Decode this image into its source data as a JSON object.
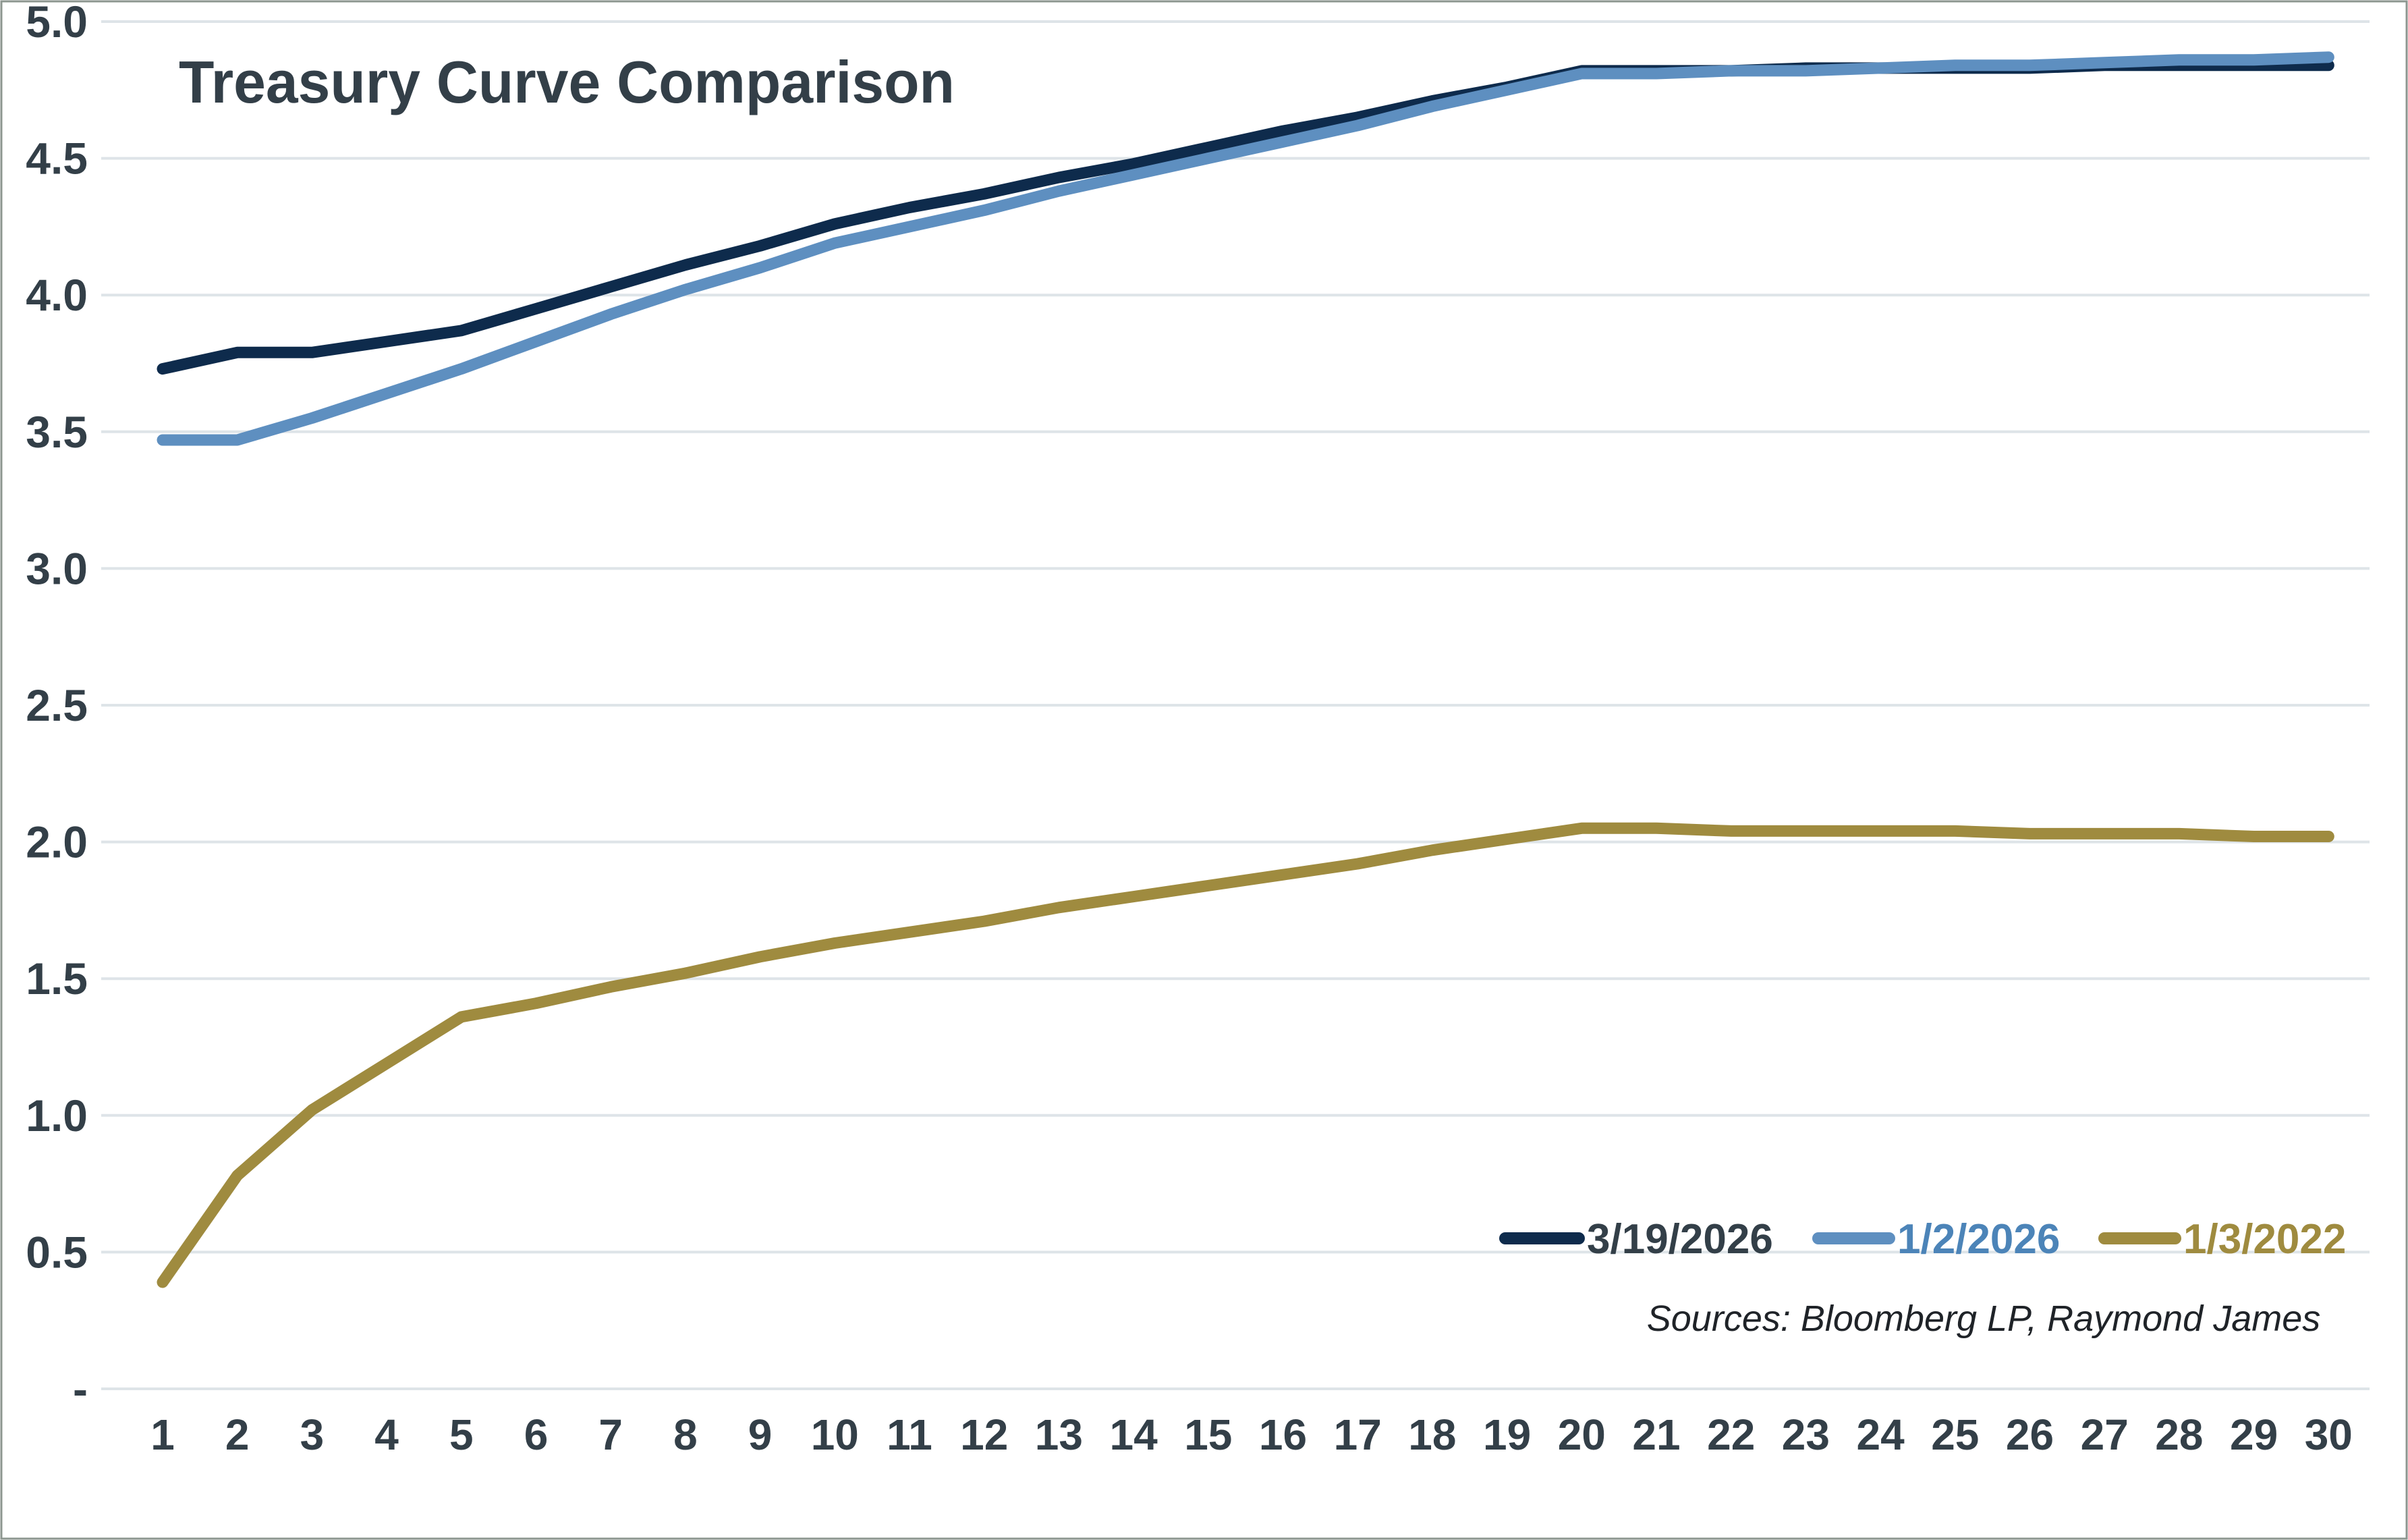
{
  "chart_data": {
    "type": "line",
    "title": "Treasury Curve Comparison",
    "x": [
      1,
      2,
      3,
      4,
      5,
      6,
      7,
      8,
      9,
      10,
      11,
      12,
      13,
      14,
      15,
      16,
      17,
      18,
      19,
      20,
      21,
      22,
      23,
      24,
      25,
      26,
      27,
      28,
      29,
      30
    ],
    "series": [
      {
        "name": "3/19/2026",
        "color": "#0E2B4C",
        "legend_text_color": "#333F48",
        "values": [
          3.73,
          3.79,
          3.79,
          3.83,
          3.87,
          3.95,
          4.03,
          4.11,
          4.18,
          4.26,
          4.32,
          4.37,
          4.43,
          4.48,
          4.54,
          4.6,
          4.65,
          4.71,
          4.76,
          4.82,
          4.82,
          4.82,
          4.83,
          4.83,
          4.83,
          4.83,
          4.84,
          4.84,
          4.84,
          4.84
        ]
      },
      {
        "name": "1/2/2026",
        "color": "#5E8FC0",
        "legend_text_color": "#4C84B8",
        "values": [
          3.47,
          3.47,
          3.55,
          3.64,
          3.73,
          3.83,
          3.93,
          4.02,
          4.1,
          4.19,
          4.25,
          4.31,
          4.38,
          4.44,
          4.5,
          4.56,
          4.62,
          4.69,
          4.75,
          4.81,
          4.81,
          4.82,
          4.82,
          4.83,
          4.84,
          4.84,
          4.85,
          4.86,
          4.86,
          4.87
        ]
      },
      {
        "name": "1/3/2022",
        "color": "#9F8B3F",
        "legend_text_color": "#9F8B3F",
        "values": [
          0.39,
          0.78,
          1.02,
          1.19,
          1.36,
          1.41,
          1.47,
          1.52,
          1.58,
          1.63,
          1.67,
          1.71,
          1.76,
          1.8,
          1.84,
          1.88,
          1.92,
          1.97,
          2.01,
          2.05,
          2.05,
          2.04,
          2.04,
          2.04,
          2.04,
          2.03,
          2.03,
          2.03,
          2.02,
          2.02
        ]
      }
    ],
    "ylim": [
      0,
      5
    ],
    "ytick_step": 0.5,
    "ytick_labels": [
      "5.0",
      "4.5",
      "4.0",
      "3.5",
      "3.0",
      "2.5",
      "2.0",
      "1.5",
      "1.0",
      "0.5",
      "-"
    ],
    "grid": "horizontal",
    "legend_position": "inside-bottom-right",
    "source_note": "Sources: Bloomberg LP, Raymond James"
  },
  "colors": {
    "background": "#FFFFFF",
    "gridline": "#DEE4E8",
    "axis_text": "#333F48",
    "title_text": "#333F48",
    "source_text": "#1F2328",
    "border": "#8C968F"
  }
}
